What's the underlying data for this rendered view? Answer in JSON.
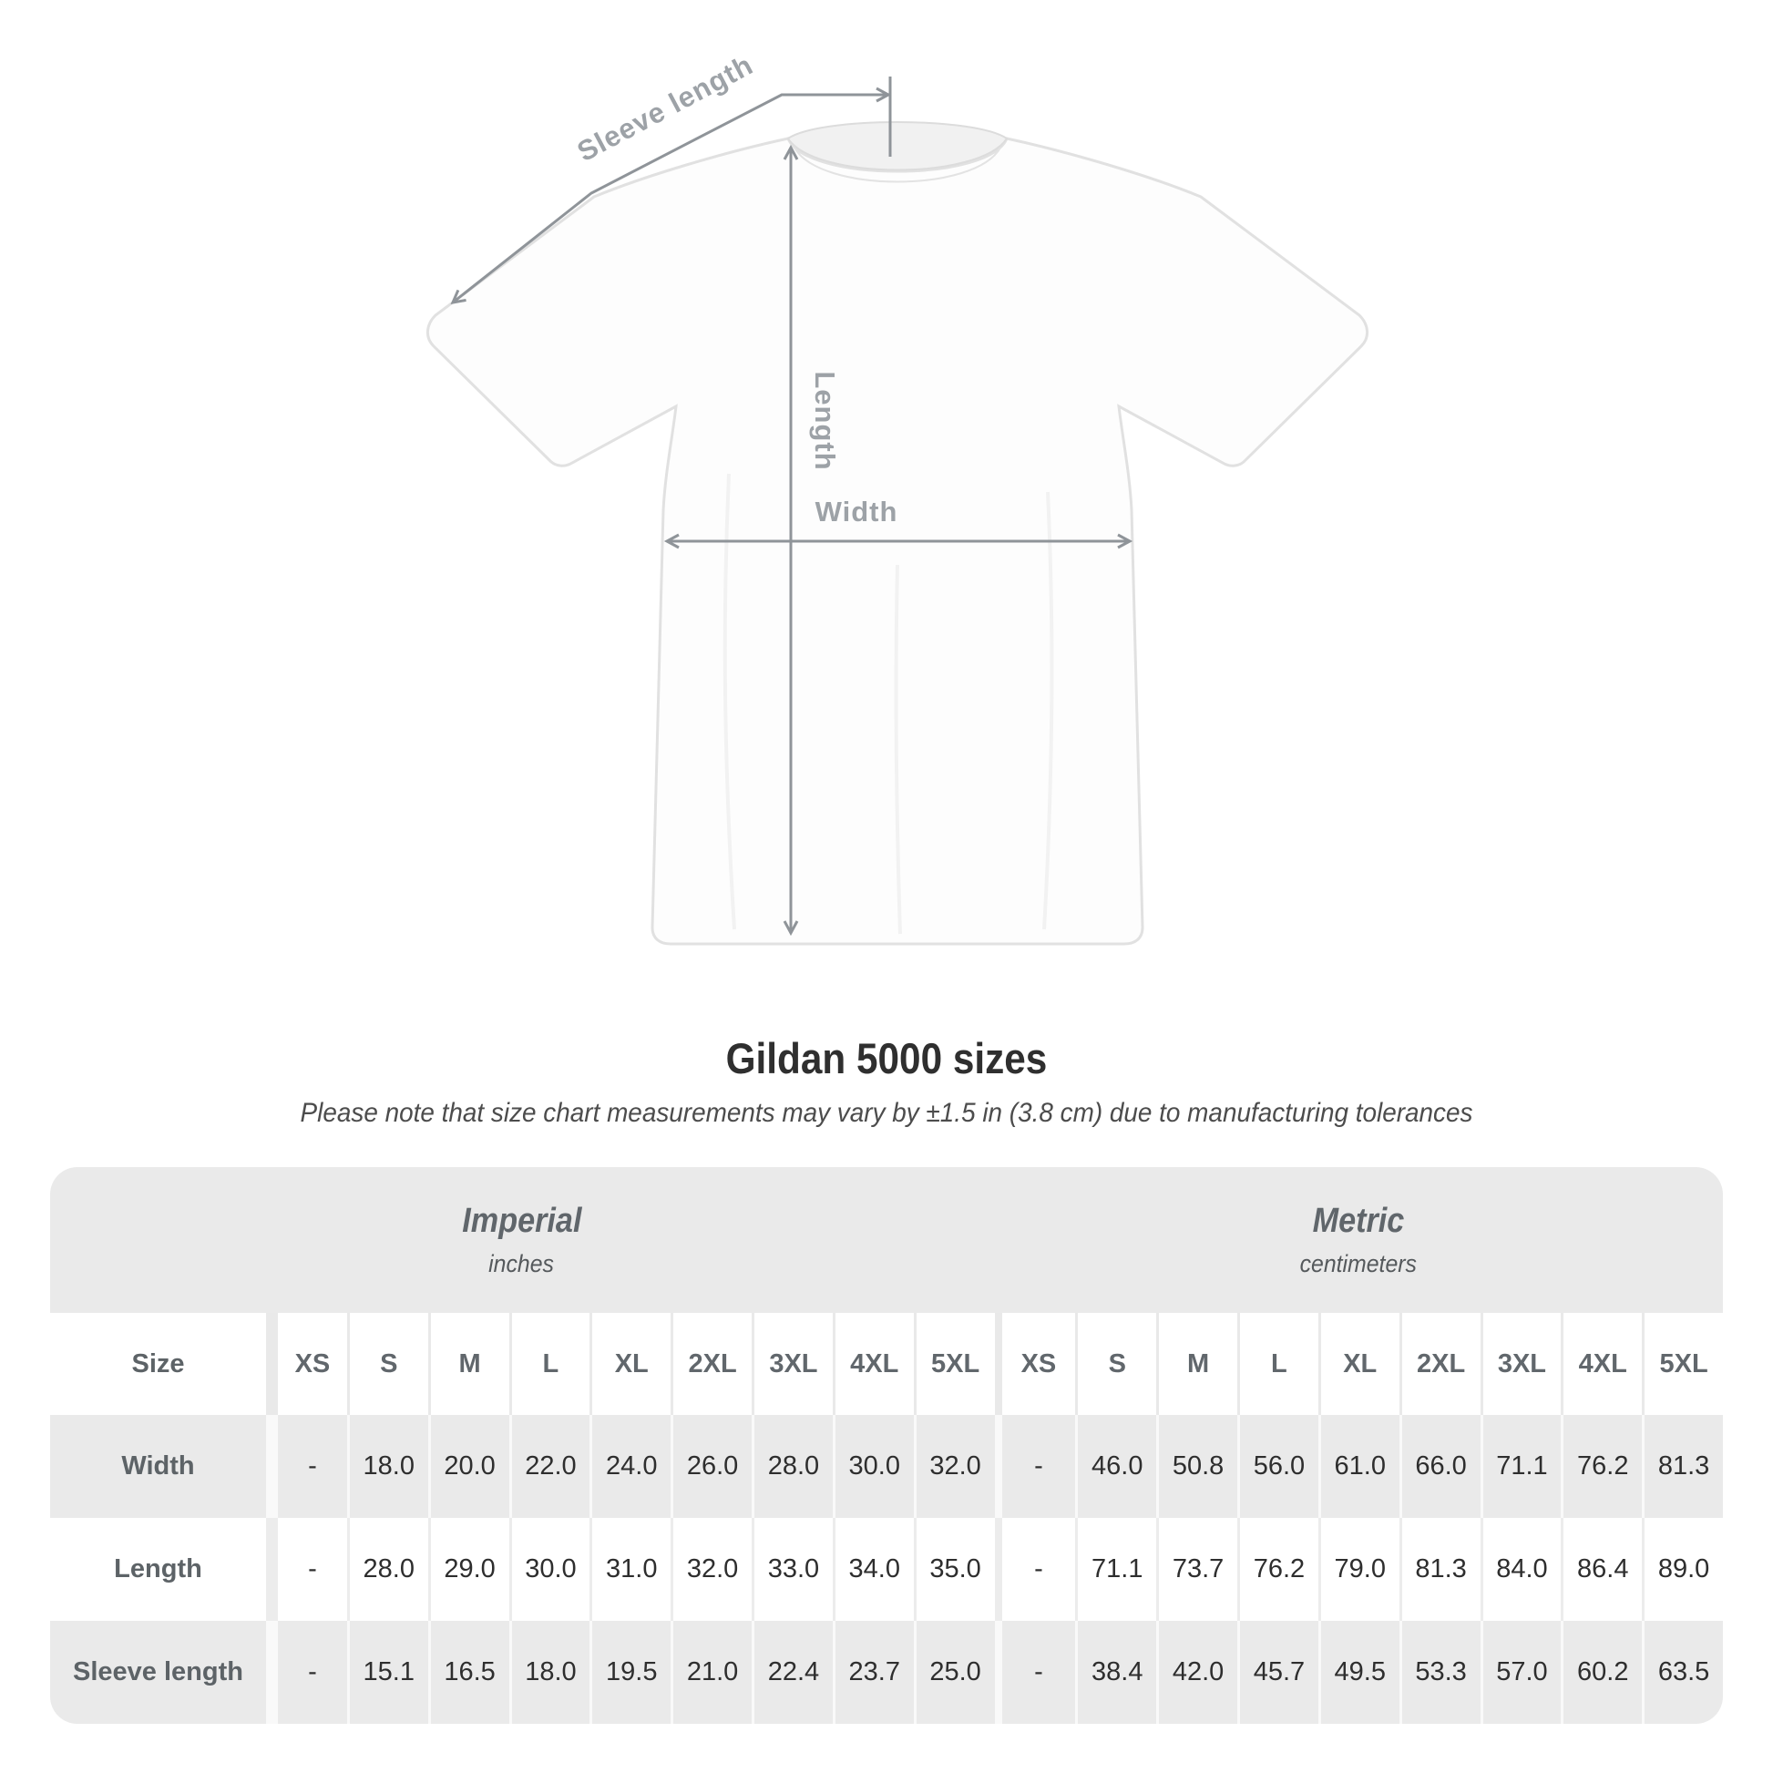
{
  "diagram": {
    "labels": {
      "sleeve_length": "Sleeve length",
      "length": "Length",
      "width": "Width"
    }
  },
  "title": "Gildan 5000 sizes",
  "subtitle": "Please note that size chart measurements may vary by ±1.5 in (3.8 cm) due to manufacturing tolerances",
  "table": {
    "unit_groups": [
      {
        "name": "Imperial",
        "unit": "inches"
      },
      {
        "name": "Metric",
        "unit": "centimeters"
      }
    ],
    "size_label": "Size",
    "sizes": [
      "XS",
      "S",
      "M",
      "L",
      "XL",
      "2XL",
      "3XL",
      "4XL",
      "5XL"
    ],
    "rows": [
      {
        "label": "Width",
        "imperial": [
          "-",
          "18.0",
          "20.0",
          "22.0",
          "24.0",
          "26.0",
          "28.0",
          "30.0",
          "32.0"
        ],
        "metric": [
          "-",
          "46.0",
          "50.8",
          "56.0",
          "61.0",
          "66.0",
          "71.1",
          "76.2",
          "81.3"
        ]
      },
      {
        "label": "Length",
        "imperial": [
          "-",
          "28.0",
          "29.0",
          "30.0",
          "31.0",
          "32.0",
          "33.0",
          "34.0",
          "35.0"
        ],
        "metric": [
          "-",
          "71.1",
          "73.7",
          "76.2",
          "79.0",
          "81.3",
          "84.0",
          "86.4",
          "89.0"
        ]
      },
      {
        "label": "Sleeve length",
        "imperial": [
          "-",
          "15.1",
          "16.5",
          "18.0",
          "19.5",
          "21.0",
          "22.4",
          "23.7",
          "25.0"
        ],
        "metric": [
          "-",
          "38.4",
          "42.0",
          "45.7",
          "49.5",
          "53.3",
          "57.0",
          "60.2",
          "63.5"
        ]
      }
    ]
  },
  "colors": {
    "band_gray": "#eaeaea",
    "header_text": "#61676c",
    "value_text": "#2e2e2e",
    "arrow_gray": "#8f9499",
    "diagram_label_gray": "#9da2a7"
  }
}
